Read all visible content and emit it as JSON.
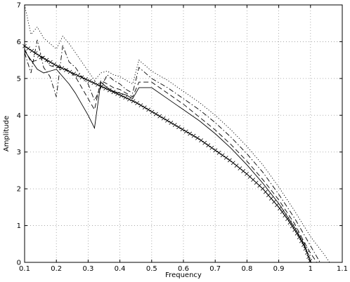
{
  "chart_data": {
    "type": "line",
    "title": "",
    "xlabel": "Frequency",
    "ylabel": "Amplitude",
    "xlim": [
      0.1,
      1.1
    ],
    "ylim": [
      0,
      7
    ],
    "xticks": [
      0.1,
      0.2,
      0.3,
      0.4,
      0.5,
      0.6,
      0.7,
      0.8,
      0.9,
      1,
      1.1
    ],
    "xtick_labels": [
      "0.1",
      "0.2",
      "0.3",
      "0.4",
      "0.5",
      "0.6",
      "0.7",
      "0.8",
      "0.9",
      "1",
      "1.1"
    ],
    "yticks": [
      0,
      1,
      2,
      3,
      4,
      5,
      6,
      7
    ],
    "ytick_labels": [
      "0",
      "1",
      "2",
      "3",
      "4",
      "5",
      "6",
      "7"
    ],
    "grid": true,
    "series": [
      {
        "style": "x-markers",
        "x": [
          0.1,
          0.15,
          0.2,
          0.25,
          0.3,
          0.35,
          0.4,
          0.45,
          0.5,
          0.55,
          0.6,
          0.65,
          0.7,
          0.75,
          0.8,
          0.85,
          0.9,
          0.93,
          0.96,
          0.98,
          0.99,
          1.0
        ],
        "y": [
          5.88,
          5.6,
          5.35,
          5.15,
          4.95,
          4.75,
          4.55,
          4.35,
          4.1,
          3.85,
          3.6,
          3.35,
          3.05,
          2.75,
          2.4,
          2.0,
          1.5,
          1.15,
          0.75,
          0.45,
          0.25,
          0.0
        ]
      },
      {
        "style": "solid",
        "x": [
          0.1,
          0.12,
          0.14,
          0.16,
          0.18,
          0.2,
          0.22,
          0.24,
          0.26,
          0.28,
          0.3,
          0.32,
          0.34,
          0.36,
          0.38,
          0.4,
          0.42,
          0.44,
          0.46,
          0.5,
          0.55,
          0.6,
          0.65,
          0.7,
          0.75,
          0.8,
          0.85,
          0.9,
          0.95,
          0.98,
          0.99,
          1.0
        ],
        "y": [
          5.75,
          5.5,
          5.25,
          5.15,
          5.2,
          5.25,
          5.05,
          4.85,
          4.6,
          4.3,
          4.0,
          3.65,
          4.9,
          4.75,
          4.65,
          4.6,
          4.55,
          4.45,
          4.75,
          4.75,
          4.45,
          4.15,
          3.85,
          3.5,
          3.1,
          2.65,
          2.15,
          1.6,
          0.95,
          0.5,
          0.25,
          0.0
        ]
      },
      {
        "style": "dashed",
        "x": [
          0.1,
          0.12,
          0.14,
          0.16,
          0.18,
          0.2,
          0.22,
          0.24,
          0.26,
          0.28,
          0.3,
          0.32,
          0.34,
          0.36,
          0.38,
          0.4,
          0.42,
          0.44,
          0.46,
          0.5,
          0.55,
          0.6,
          0.65,
          0.7,
          0.75,
          0.8,
          0.85,
          0.9,
          0.95,
          0.98,
          1.0,
          1.02
        ],
        "y": [
          5.8,
          5.45,
          5.5,
          5.6,
          5.35,
          5.3,
          5.3,
          5.2,
          5.05,
          4.75,
          4.45,
          4.15,
          4.95,
          4.85,
          4.75,
          4.7,
          4.6,
          4.5,
          4.9,
          4.9,
          4.6,
          4.3,
          3.95,
          3.6,
          3.2,
          2.75,
          2.25,
          1.7,
          1.05,
          0.55,
          0.25,
          0.0
        ]
      },
      {
        "style": "dash-dot",
        "x": [
          0.1,
          0.12,
          0.14,
          0.16,
          0.18,
          0.2,
          0.22,
          0.24,
          0.26,
          0.28,
          0.3,
          0.32,
          0.34,
          0.36,
          0.38,
          0.4,
          0.42,
          0.44,
          0.46,
          0.5,
          0.55,
          0.6,
          0.65,
          0.7,
          0.75,
          0.8,
          0.85,
          0.9,
          0.95,
          1.0,
          1.03
        ],
        "y": [
          5.7,
          5.15,
          6.05,
          5.3,
          5.05,
          4.5,
          5.9,
          5.45,
          5.3,
          5.05,
          4.85,
          4.4,
          4.75,
          5.1,
          4.95,
          4.85,
          4.7,
          4.6,
          5.3,
          5.0,
          4.75,
          4.45,
          4.15,
          3.8,
          3.4,
          2.95,
          2.45,
          1.85,
          1.2,
          0.45,
          0.0
        ]
      },
      {
        "style": "dotted",
        "x": [
          0.1,
          0.12,
          0.14,
          0.16,
          0.18,
          0.2,
          0.22,
          0.24,
          0.26,
          0.28,
          0.3,
          0.32,
          0.34,
          0.36,
          0.38,
          0.4,
          0.42,
          0.44,
          0.46,
          0.5,
          0.55,
          0.6,
          0.65,
          0.7,
          0.75,
          0.8,
          0.85,
          0.9,
          0.95,
          1.0,
          1.04,
          1.06
        ],
        "y": [
          7.0,
          6.2,
          6.4,
          6.1,
          5.95,
          5.8,
          6.15,
          5.95,
          5.7,
          5.45,
          5.2,
          4.95,
          5.15,
          5.2,
          5.1,
          5.05,
          4.95,
          4.85,
          5.5,
          5.2,
          4.95,
          4.65,
          4.35,
          4.0,
          3.6,
          3.15,
          2.65,
          2.05,
          1.4,
          0.7,
          0.25,
          0.0
        ]
      }
    ]
  }
}
